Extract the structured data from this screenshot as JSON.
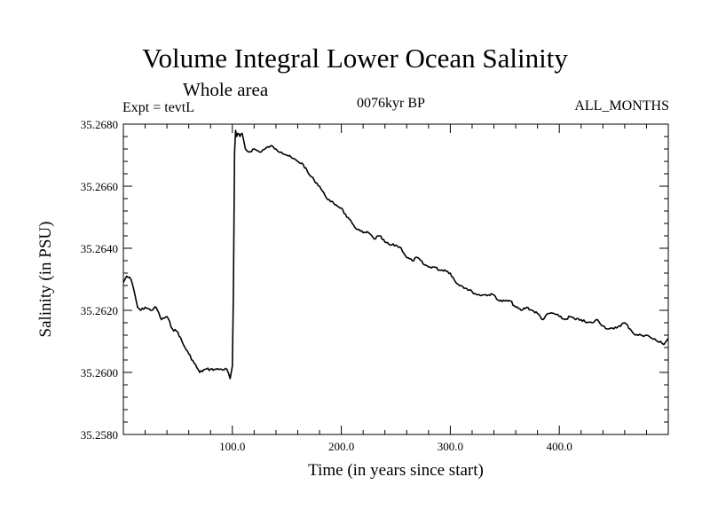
{
  "chart_data": {
    "type": "line",
    "title": "Volume Integral Lower Ocean Salinity",
    "subtitle": "Whole area",
    "left_label": "Expt = tevtL",
    "center_label": "0076kyr BP",
    "right_label": "ALL_MONTHS",
    "xlabel": "Time (in years since start)",
    "ylabel": "Salinity (in PSU)",
    "xlim": [
      0,
      500
    ],
    "ylim": [
      35.258,
      35.268
    ],
    "x_ticks": [
      100,
      200,
      300,
      400
    ],
    "x_tick_labels": [
      "100.0",
      "200.0",
      "300.0",
      "400.0"
    ],
    "y_ticks": [
      35.258,
      35.26,
      35.262,
      35.264,
      35.266,
      35.268
    ],
    "y_tick_labels": [
      "35.2580",
      "35.2600",
      "35.2620",
      "35.2640",
      "35.2660",
      "35.2680"
    ],
    "grid": false,
    "series": [
      {
        "color": "#000000",
        "x": [
          0,
          3,
          7,
          10,
          13,
          16,
          20,
          25,
          30,
          35,
          40,
          45,
          50,
          55,
          60,
          65,
          70,
          75,
          80,
          85,
          90,
          95,
          98,
          100,
          101,
          102,
          103,
          104,
          105,
          107,
          109,
          112,
          115,
          120,
          125,
          130,
          135,
          140,
          145,
          150,
          155,
          160,
          165,
          170,
          175,
          180,
          185,
          190,
          195,
          200,
          205,
          210,
          215,
          220,
          225,
          230,
          235,
          240,
          245,
          250,
          255,
          260,
          265,
          270,
          275,
          280,
          285,
          290,
          295,
          300,
          305,
          310,
          315,
          320,
          325,
          330,
          335,
          340,
          345,
          350,
          355,
          360,
          365,
          370,
          375,
          380,
          385,
          390,
          395,
          400,
          405,
          410,
          415,
          420,
          425,
          430,
          435,
          440,
          445,
          450,
          455,
          460,
          465,
          470,
          475,
          480,
          485,
          490,
          493,
          496,
          500
        ],
        "y": [
          35.2629,
          35.2631,
          35.263,
          35.2626,
          35.2621,
          35.262,
          35.2621,
          35.262,
          35.2621,
          35.2617,
          35.2618,
          35.2614,
          35.2613,
          35.2609,
          35.2606,
          35.2603,
          35.26,
          35.2601,
          35.2601,
          35.2601,
          35.2601,
          35.2601,
          35.2598,
          35.2602,
          35.2626,
          35.2671,
          35.2678,
          35.2676,
          35.2677,
          35.2676,
          35.2677,
          35.2672,
          35.2671,
          35.2672,
          35.2671,
          35.2672,
          35.2673,
          35.2672,
          35.2671,
          35.267,
          35.2669,
          35.2668,
          35.2667,
          35.2664,
          35.2662,
          35.266,
          35.2657,
          35.2655,
          35.2654,
          35.2653,
          35.265,
          35.2648,
          35.2646,
          35.2645,
          35.2645,
          35.2643,
          35.2644,
          35.2642,
          35.2641,
          35.2641,
          35.264,
          35.2637,
          35.2636,
          35.2637,
          35.2635,
          35.2634,
          35.2634,
          35.2633,
          35.2633,
          35.2632,
          35.2629,
          35.2628,
          35.2627,
          35.2626,
          35.2625,
          35.2625,
          35.2625,
          35.2625,
          35.2623,
          35.2623,
          35.2623,
          35.2621,
          35.262,
          35.2621,
          35.262,
          35.2619,
          35.2617,
          35.2619,
          35.2619,
          35.2618,
          35.2617,
          35.2618,
          35.2617,
          35.2617,
          35.2616,
          35.2616,
          35.2617,
          35.2615,
          35.2614,
          35.2614,
          35.2615,
          35.2616,
          35.2614,
          35.2612,
          35.2612,
          35.2612,
          35.2611,
          35.261,
          35.261,
          35.2609,
          35.2611
        ]
      }
    ]
  }
}
